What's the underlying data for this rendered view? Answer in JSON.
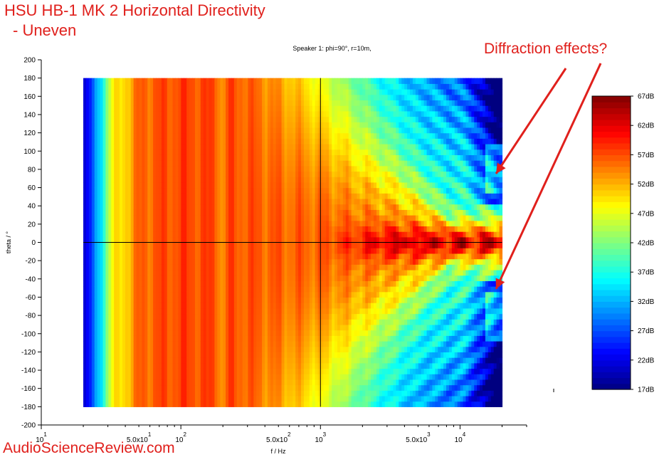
{
  "title_line1": "HSU HB-1 MK 2 Horizontal Directivity",
  "title_line2": "- Uneven",
  "watermark": "AudioScienceReview.com",
  "annotation": "Diffraction effects?",
  "chart_data": {
    "type": "heatmap",
    "title": "Speaker 1: phi=90°, r=10m,",
    "xlabel": "f / Hz",
    "ylabel": "theta / °",
    "x_scale": "log",
    "xlim": [
      10,
      30000
    ],
    "ylim": [
      -200,
      200
    ],
    "data_x_range": [
      20,
      20000
    ],
    "data_y_range": [
      -180,
      180
    ],
    "y_ticks": [
      "200",
      "180",
      "160",
      "140",
      "120",
      "100",
      "80",
      "60",
      "40",
      "20",
      "0",
      "-20",
      "-40",
      "-60",
      "-80",
      "-100",
      "-120",
      "-140",
      "-160",
      "-180",
      "-200"
    ],
    "x_tick_labels": [
      {
        "value": 10,
        "base": "10",
        "sup": "1"
      },
      {
        "value": 50,
        "base": "5.0x10",
        "sup": "1"
      },
      {
        "value": 100,
        "base": "10",
        "sup": "2"
      },
      {
        "value": 500,
        "base": "5.0x10",
        "sup": "2"
      },
      {
        "value": 1000,
        "base": "10",
        "sup": "3"
      },
      {
        "value": 5000,
        "base": "5.0x10",
        "sup": "3"
      },
      {
        "value": 10000,
        "base": "10",
        "sup": "4"
      }
    ],
    "crosshair": {
      "x": 1000,
      "y": 0
    },
    "colorbar": {
      "min": 17,
      "max": 67,
      "unit": "dB",
      "labels": [
        "67dB",
        "62dB",
        "57dB",
        "52dB",
        "47dB",
        "42dB",
        "37dB",
        "32dB",
        "27dB",
        "22dB",
        "17dB"
      ]
    },
    "grid": false,
    "colormap": "jet"
  },
  "colors": {
    "accent": "#e0201c",
    "axis": "#000000"
  }
}
